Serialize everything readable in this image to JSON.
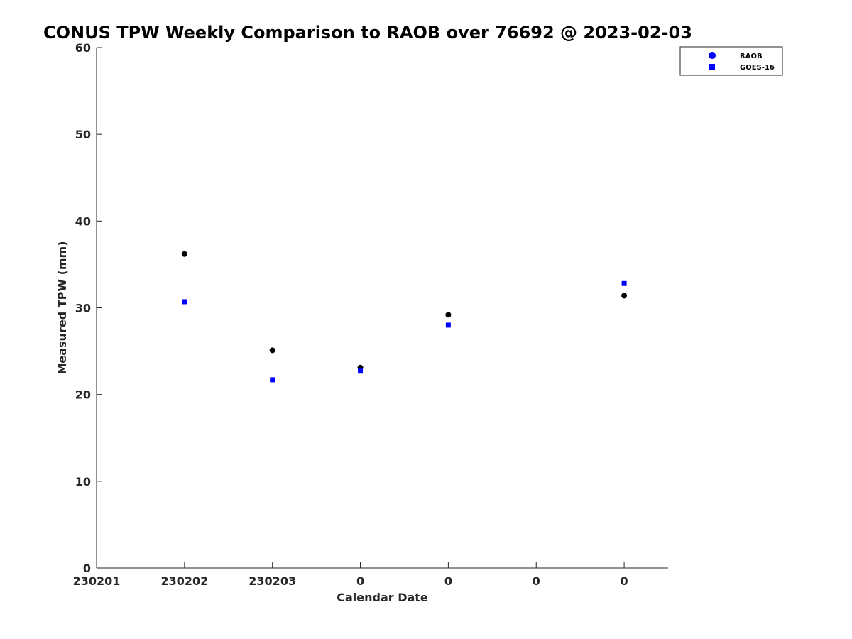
{
  "chart_data": {
    "type": "scatter",
    "title": "CONUS TPW Weekly Comparison to RAOB over 76692 @ 2023-02-03",
    "xlabel": "Calendar Date",
    "ylabel": "Measured TPW (mm)",
    "x_tick_labels": [
      "230201",
      "230202",
      "230203",
      "0",
      "0",
      "0",
      "0"
    ],
    "x_tick_positions": [
      0,
      1,
      2,
      3,
      4,
      5,
      6
    ],
    "xlim": [
      0,
      6.5
    ],
    "ylim": [
      0,
      60
    ],
    "y_ticks": [
      0,
      10,
      20,
      30,
      40,
      50,
      60
    ],
    "grid": false,
    "legend": {
      "placement": "top-right",
      "entries": [
        "RAOB",
        "GOES-16"
      ]
    },
    "series": [
      {
        "name": "RAOB",
        "marker": "circle",
        "color": "#000000",
        "legend_color": "#0000ff",
        "x": [
          1,
          2,
          3,
          4,
          6
        ],
        "y": [
          36.2,
          25.1,
          23.1,
          29.2,
          31.4
        ]
      },
      {
        "name": "GOES-16",
        "marker": "square",
        "color": "#0000ff",
        "x": [
          1,
          2,
          3,
          4,
          6
        ],
        "y": [
          30.7,
          21.7,
          22.7,
          28.0,
          32.8
        ]
      }
    ]
  }
}
